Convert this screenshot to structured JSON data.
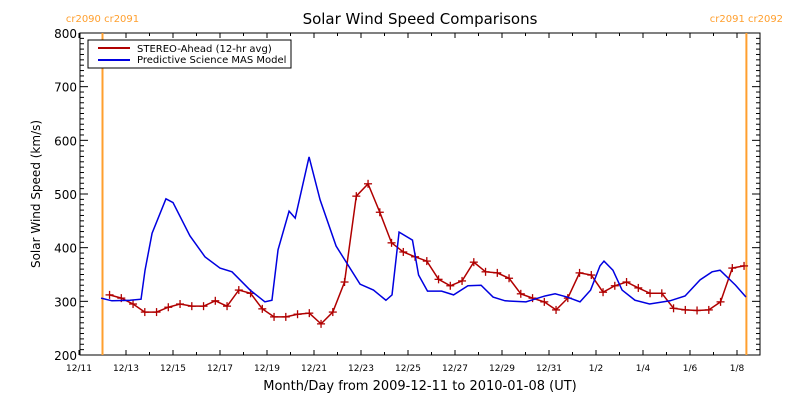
{
  "chart_data": {
    "type": "line",
    "title": "Solar Wind Speed Comparisons",
    "xlabel": "Month/Day from 2009-12-11 to 2010-01-08 (UT)",
    "ylabel": "Solar Wind Speed (km/s)",
    "ylim": [
      200,
      800
    ],
    "xlim_days": [
      0,
      29
    ],
    "x_units": "days since 2009-12-11 00:00 UT",
    "y_ticks": [
      "200",
      "300",
      "400",
      "500",
      "600",
      "700",
      "800"
    ],
    "y_tick_values": [
      200,
      300,
      400,
      500,
      600,
      700,
      800
    ],
    "x_ticks": [
      "12/11",
      "12/13",
      "12/15",
      "12/17",
      "12/19",
      "12/21",
      "12/23",
      "12/25",
      "12/27",
      "12/29",
      "12/31",
      "1/2",
      "1/4",
      "1/6",
      "1/8"
    ],
    "x_tick_days": [
      0,
      2,
      4,
      6,
      8,
      10,
      12,
      14,
      16,
      18,
      20,
      22,
      24,
      26,
      28
    ],
    "legend_position": "top-left",
    "carrington_markers": [
      {
        "day": 1.0,
        "label": "cr2090 cr2091",
        "color": "#ff9f2e"
      },
      {
        "day": 28.4,
        "label": "cr2091 cr2092",
        "color": "#ff9f2e"
      }
    ],
    "series": [
      {
        "name": "STEREO-Ahead (12-hr avg)",
        "color": "#b00000",
        "marker": "plus",
        "x_start": 1.3,
        "x_step": 0.5,
        "values": [
          312,
          306,
          295,
          280,
          280,
          289,
          295,
          291,
          291,
          301,
          291,
          321,
          315,
          286,
          271,
          271,
          276,
          278,
          258,
          280,
          336,
          496,
          519,
          466,
          409,
          392,
          383,
          375,
          341,
          329,
          338,
          373,
          355,
          353,
          343,
          314,
          306,
          299,
          284,
          306,
          353,
          349,
          317,
          329,
          336,
          325,
          315,
          315,
          287,
          284,
          283,
          284,
          299,
          362,
          366
        ]
      },
      {
        "name": "Predictive Science MAS Model",
        "color": "#0000e0",
        "marker": "none",
        "x": [
          0.94,
          1.4,
          2.17,
          2.64,
          2.81,
          3.11,
          3.7,
          4.0,
          4.72,
          5.36,
          6.0,
          6.51,
          7.28,
          7.91,
          8.21,
          8.47,
          8.94,
          9.2,
          9.79,
          10.26,
          10.94,
          11.96,
          12.53,
          13.06,
          13.32,
          13.62,
          14.19,
          14.45,
          14.83,
          15.43,
          15.94,
          16.55,
          17.11,
          17.62,
          18.13,
          19.02,
          19.83,
          20.26,
          20.77,
          21.32,
          21.77,
          22.17,
          22.34,
          22.72,
          23.11,
          23.66,
          24.28,
          25.15,
          25.79,
          26.43,
          26.94,
          27.28,
          27.94,
          28.38
        ],
        "values": [
          306,
          301,
          302,
          304,
          358,
          427,
          491,
          484,
          422,
          383,
          362,
          355,
          321,
          299,
          302,
          396,
          468,
          455,
          569,
          489,
          403,
          332,
          321,
          302,
          312,
          429,
          414,
          349,
          319,
          319,
          312,
          329,
          330,
          308,
          301,
          299,
          310,
          314,
          308,
          299,
          321,
          366,
          375,
          358,
          321,
          302,
          295,
          301,
          310,
          340,
          355,
          358,
          330,
          308
        ]
      }
    ]
  }
}
